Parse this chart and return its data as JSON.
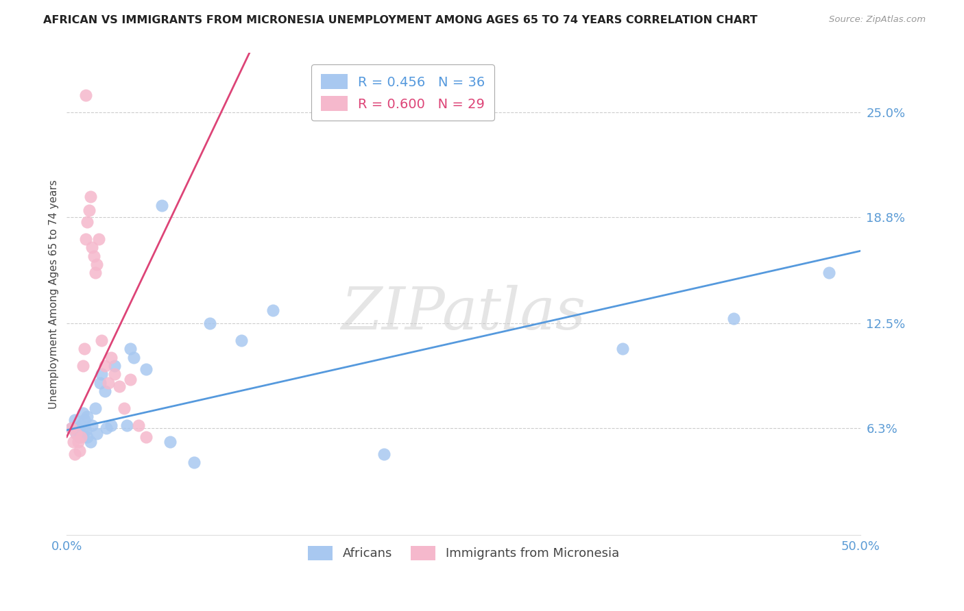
{
  "title": "AFRICAN VS IMMIGRANTS FROM MICRONESIA UNEMPLOYMENT AMONG AGES 65 TO 74 YEARS CORRELATION CHART",
  "source": "Source: ZipAtlas.com",
  "ylabel": "Unemployment Among Ages 65 to 74 years",
  "xlim": [
    0.0,
    0.5
  ],
  "ylim": [
    0.0,
    0.285
  ],
  "xticks": [
    0.0,
    0.1,
    0.2,
    0.3,
    0.4,
    0.5
  ],
  "xticklabels": [
    "0.0%",
    "",
    "",
    "",
    "",
    "50.0%"
  ],
  "ytick_labels_right": [
    "25.0%",
    "18.8%",
    "12.5%",
    "6.3%"
  ],
  "ytick_values_right": [
    0.25,
    0.188,
    0.125,
    0.063
  ],
  "blue_R": 0.456,
  "blue_N": 36,
  "pink_R": 0.6,
  "pink_N": 29,
  "blue_color": "#a8c8f0",
  "pink_color": "#f5b8cc",
  "blue_line_color": "#5599dd",
  "pink_line_color": "#dd4477",
  "watermark": "ZIPatlas",
  "blue_line_x0": 0.0,
  "blue_line_y0": 0.062,
  "blue_line_x1": 0.5,
  "blue_line_y1": 0.168,
  "pink_line_x0": 0.0,
  "pink_line_y0": 0.058,
  "pink_line_x1": 0.115,
  "pink_line_y1": 0.285,
  "africans_x": [
    0.003,
    0.005,
    0.006,
    0.007,
    0.008,
    0.009,
    0.01,
    0.01,
    0.011,
    0.012,
    0.013,
    0.013,
    0.015,
    0.016,
    0.018,
    0.019,
    0.021,
    0.022,
    0.024,
    0.025,
    0.028,
    0.03,
    0.038,
    0.04,
    0.042,
    0.05,
    0.06,
    0.065,
    0.08,
    0.09,
    0.11,
    0.13,
    0.2,
    0.35,
    0.42,
    0.48
  ],
  "africans_y": [
    0.063,
    0.068,
    0.06,
    0.063,
    0.058,
    0.065,
    0.06,
    0.072,
    0.068,
    0.062,
    0.07,
    0.058,
    0.055,
    0.065,
    0.075,
    0.06,
    0.09,
    0.095,
    0.085,
    0.063,
    0.065,
    0.1,
    0.065,
    0.11,
    0.105,
    0.098,
    0.195,
    0.055,
    0.043,
    0.125,
    0.115,
    0.133,
    0.048,
    0.11,
    0.128,
    0.155
  ],
  "micronesia_x": [
    0.003,
    0.004,
    0.005,
    0.006,
    0.007,
    0.008,
    0.009,
    0.01,
    0.011,
    0.012,
    0.013,
    0.014,
    0.015,
    0.016,
    0.017,
    0.018,
    0.019,
    0.02,
    0.022,
    0.024,
    0.026,
    0.028,
    0.03,
    0.033,
    0.036,
    0.04,
    0.045,
    0.05,
    0.012
  ],
  "micronesia_y": [
    0.063,
    0.055,
    0.048,
    0.06,
    0.055,
    0.05,
    0.058,
    0.1,
    0.11,
    0.175,
    0.185,
    0.192,
    0.2,
    0.17,
    0.165,
    0.155,
    0.16,
    0.175,
    0.115,
    0.1,
    0.09,
    0.105,
    0.095,
    0.088,
    0.075,
    0.092,
    0.065,
    0.058,
    0.26
  ]
}
